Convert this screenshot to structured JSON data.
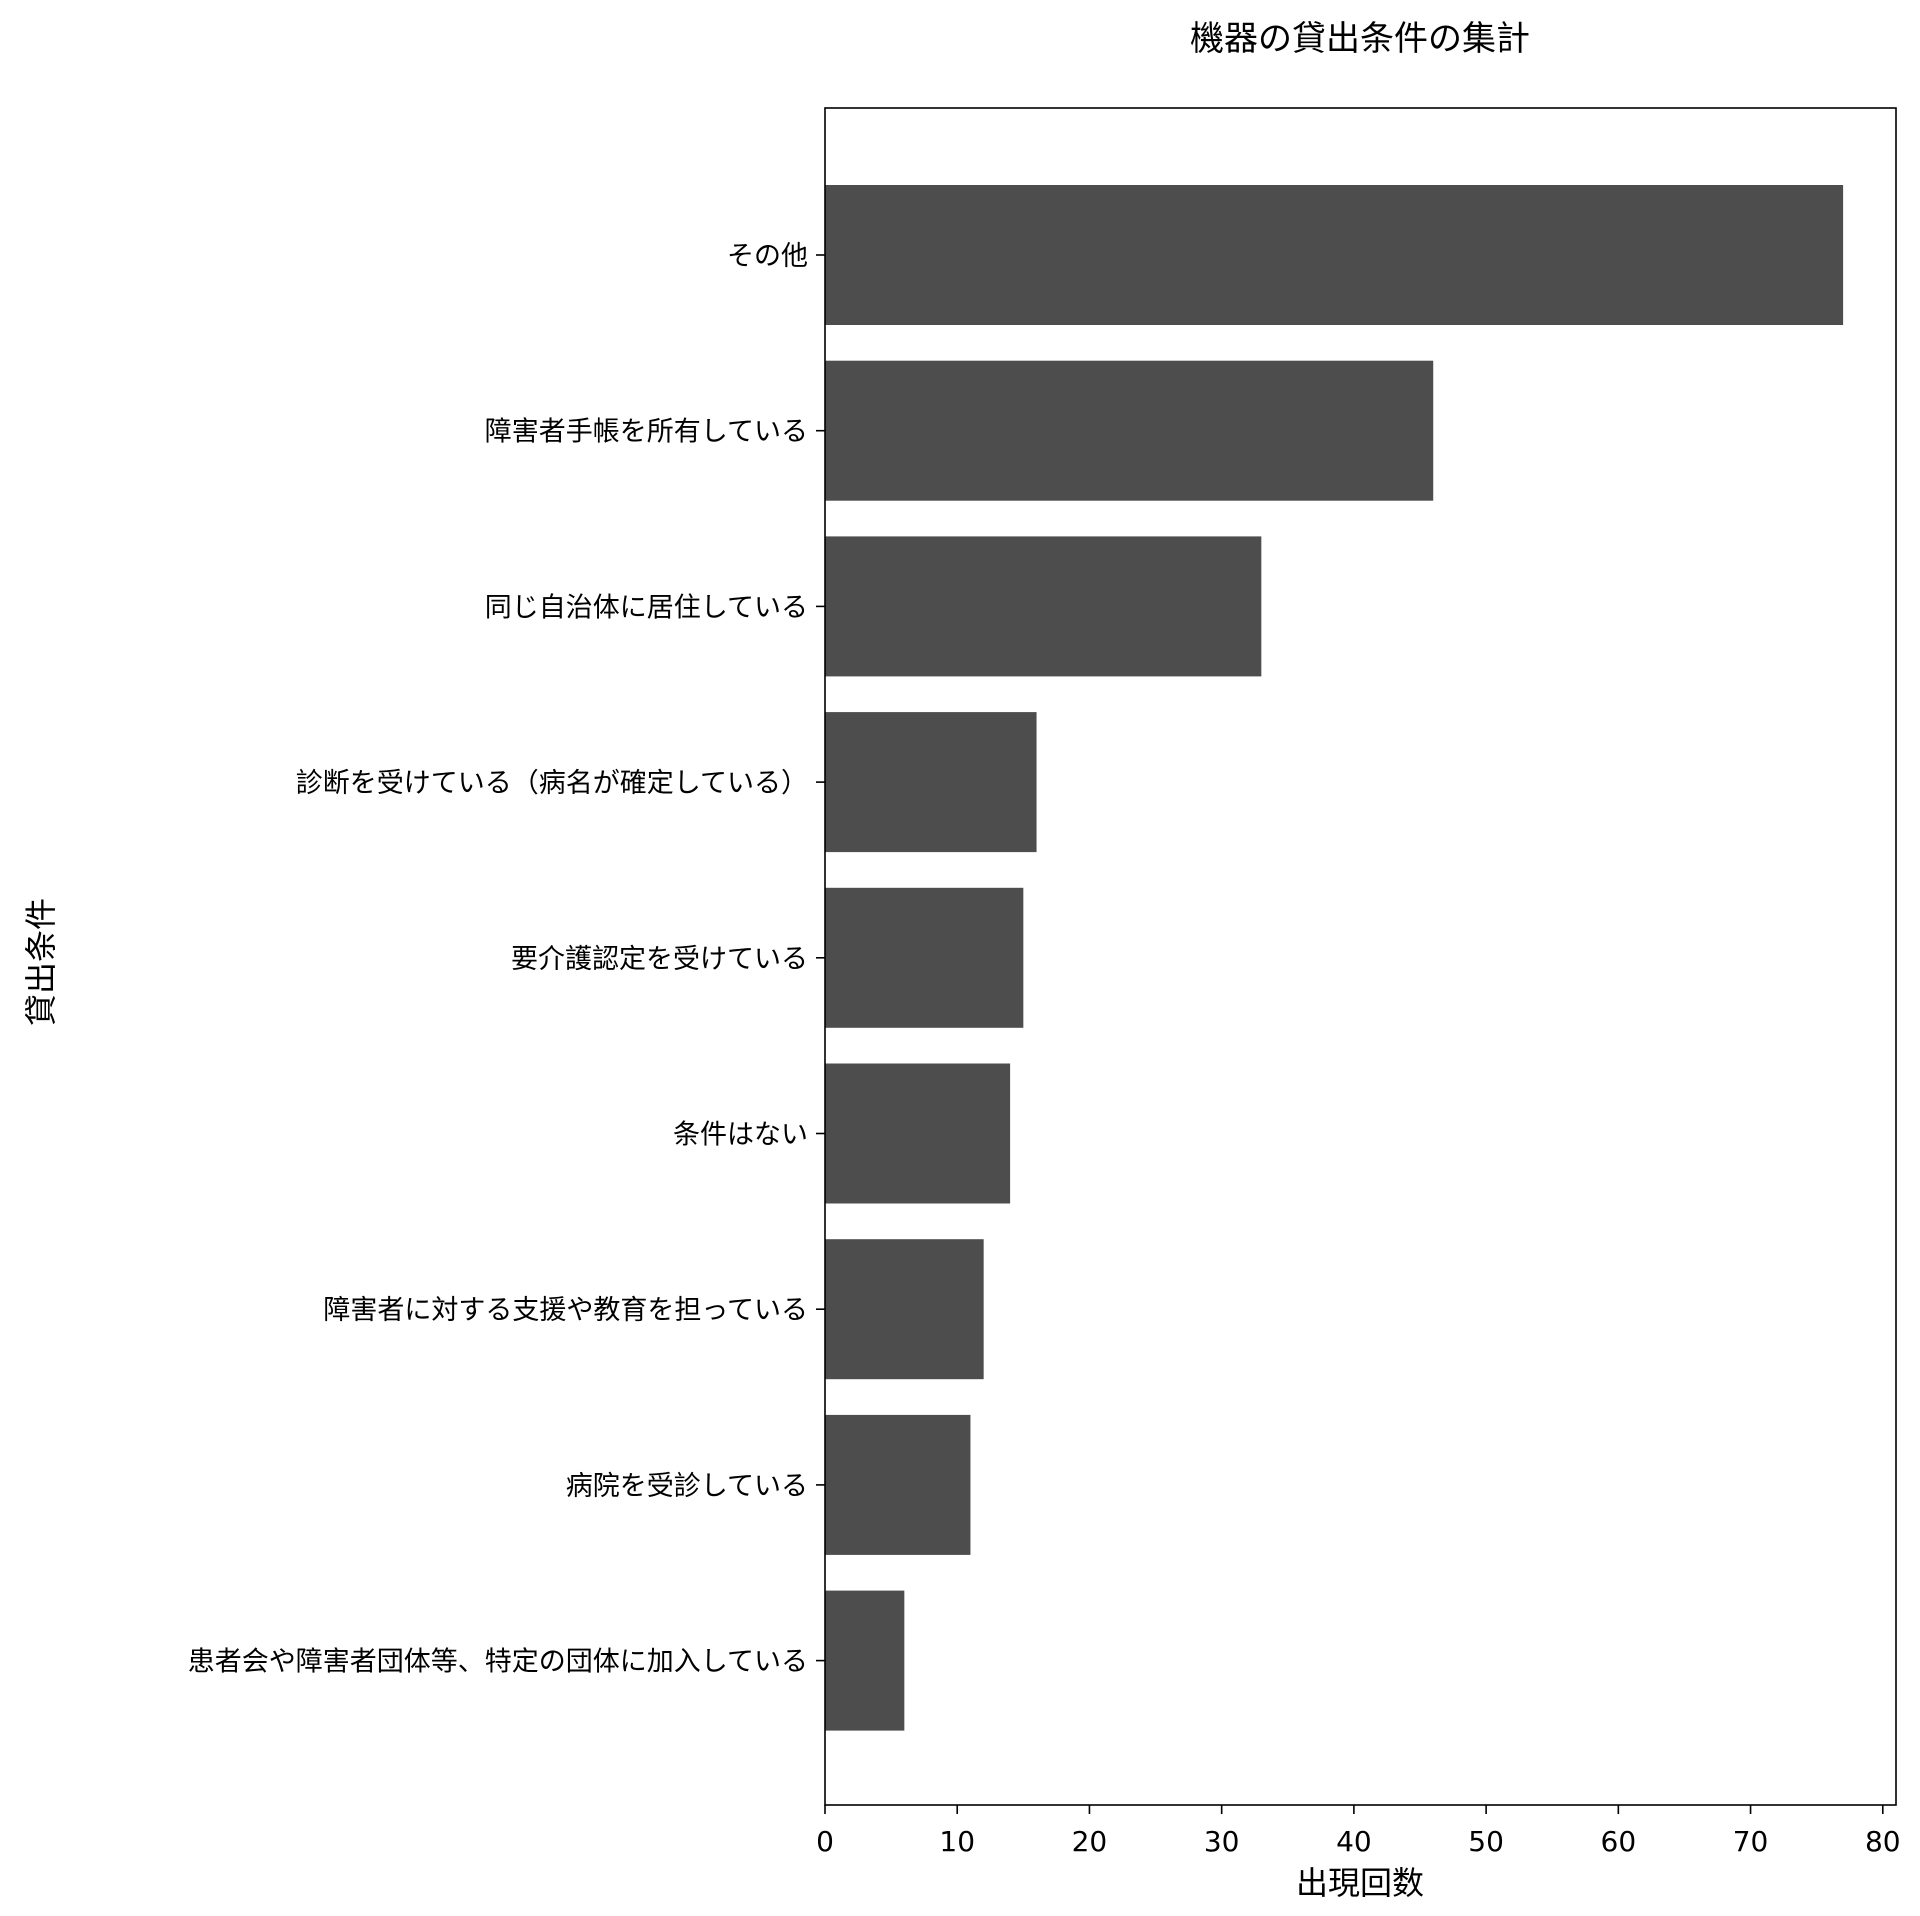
{
  "chart_data": {
    "type": "bar",
    "orientation": "horizontal",
    "title": "機器の貸出条件の集計",
    "xlabel": "出現回数",
    "ylabel": "貸出条件",
    "xlim": [
      0,
      81
    ],
    "xticks": [
      0,
      10,
      20,
      30,
      40,
      50,
      60,
      70,
      80
    ],
    "grid": false,
    "bar_color": "#4d4d4d",
    "categories": [
      "その他",
      "障害者手帳を所有している",
      "同じ自治体に居住している",
      "診断を受けている（病名が確定している）",
      "要介護認定を受けている",
      "条件はない",
      "障害者に対する支援や教育を担っている",
      "病院を受診している",
      "患者会や障害者団体等、特定の団体に加入している"
    ],
    "values": [
      77,
      46,
      33,
      16,
      15,
      14,
      12,
      11,
      6
    ]
  }
}
